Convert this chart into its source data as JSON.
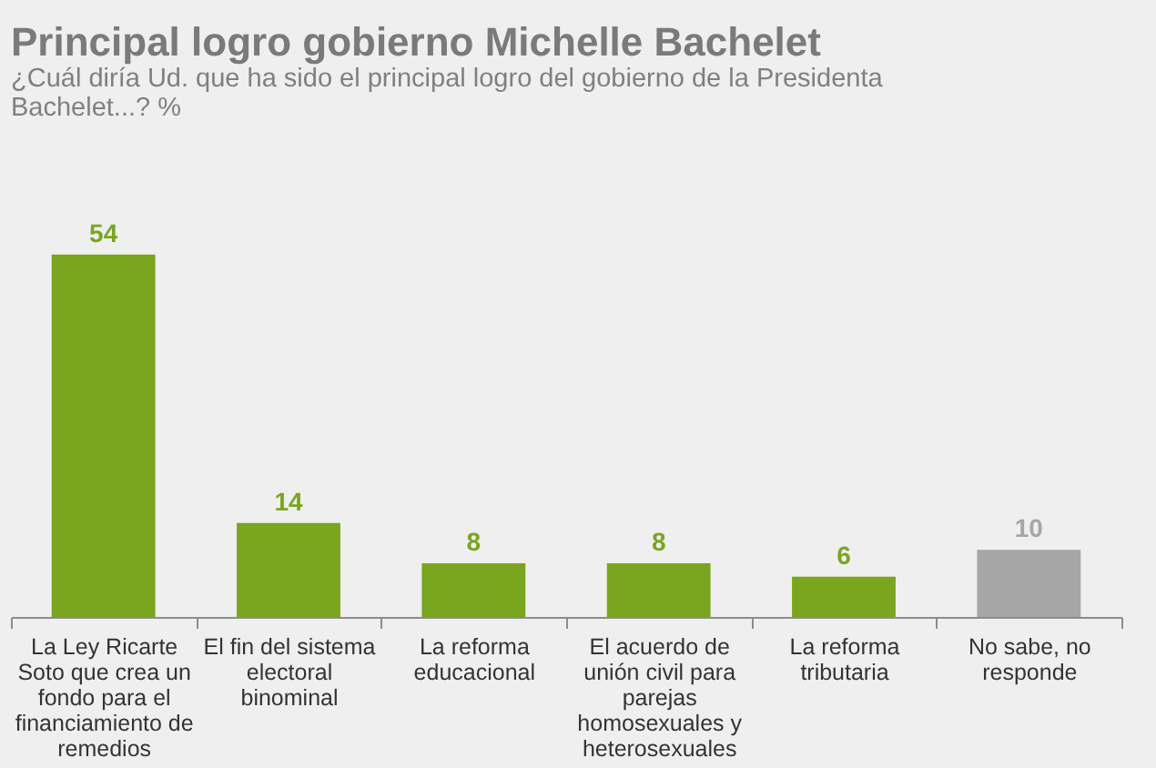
{
  "chart_data": {
    "type": "bar",
    "title": "Principal logro gobierno Michelle Bachelet",
    "subtitle": "¿Cuál diría Ud. que ha sido el principal logro del gobierno de la Presidenta Bachelet...? %",
    "categories": [
      "La Ley Ricarte Soto que crea un fondo para el financiamiento de remedios",
      "El fin del sistema electoral binominal",
      "La reforma educacional",
      "El acuerdo de unión civil para parejas homosexuales y heterosexuales",
      "La reforma tributaria",
      "No sabe, no responde"
    ],
    "values": [
      54,
      14,
      8,
      8,
      6,
      10
    ],
    "colors": [
      "#7aa51f",
      "#7aa51f",
      "#7aa51f",
      "#7aa51f",
      "#7aa51f",
      "#a6a6a6"
    ],
    "data_labels": true,
    "tick_labels": "x"
  }
}
